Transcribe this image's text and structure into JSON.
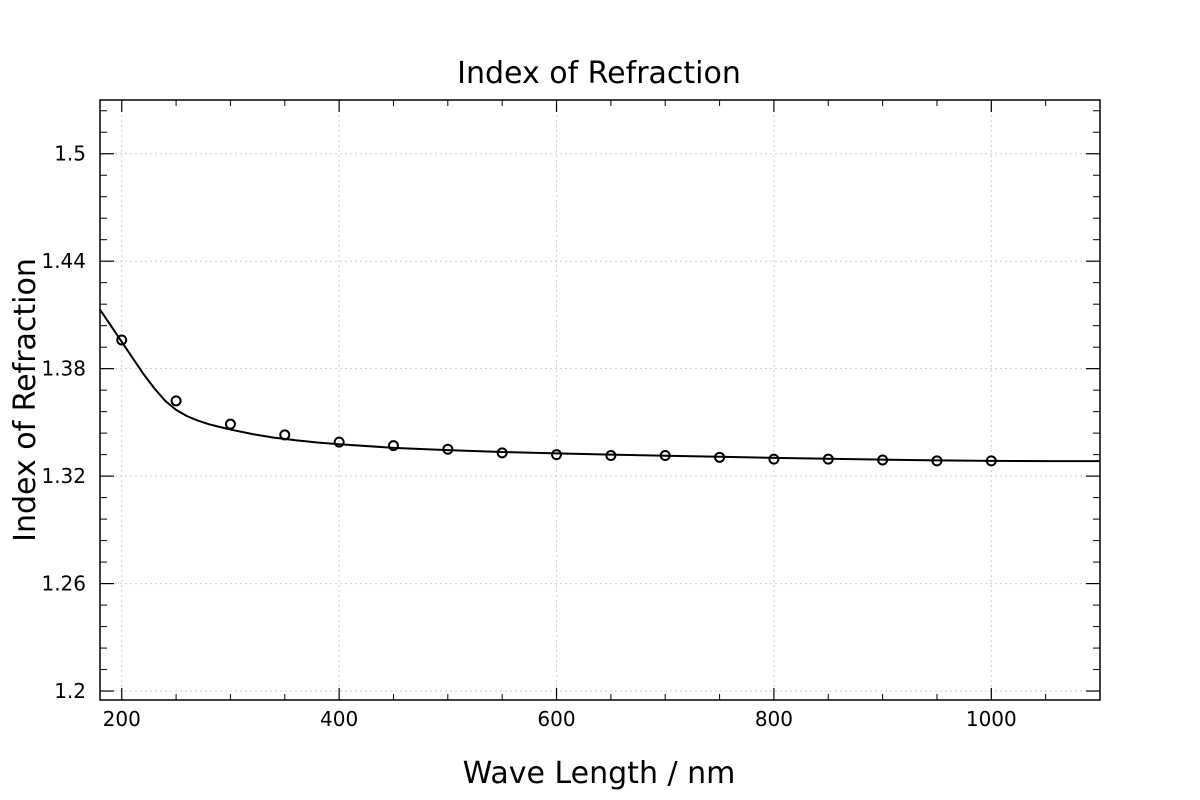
{
  "chart_data": {
    "type": "scatter",
    "title": "Index of Refraction",
    "xlabel": "Wave Length / nm",
    "ylabel": "Index of Refraction",
    "xlim": [
      180,
      1100
    ],
    "ylim": [
      1.195,
      1.53
    ],
    "xticks": [
      200,
      400,
      600,
      800,
      1000
    ],
    "xtick_labels": [
      "200",
      "400",
      "600",
      "800",
      "1000"
    ],
    "yticks": [
      1.2,
      1.26,
      1.32,
      1.38,
      1.44,
      1.5
    ],
    "ytick_labels": [
      "1.2",
      "1.26",
      "1.32",
      "1.38",
      "1.44",
      "1.5"
    ],
    "grid": true,
    "series": [
      {
        "kind": "markers",
        "marker": "open-circle",
        "color": "#000000",
        "x": [
          200,
          250,
          300,
          350,
          400,
          450,
          500,
          550,
          600,
          650,
          700,
          750,
          800,
          850,
          900,
          950,
          1000
        ],
        "y": [
          1.396,
          1.362,
          1.349,
          1.343,
          1.339,
          1.337,
          1.335,
          1.333,
          1.332,
          1.3315,
          1.3315,
          1.3305,
          1.3295,
          1.3295,
          1.329,
          1.3285,
          1.3285
        ]
      },
      {
        "kind": "fit-line",
        "color": "#000000",
        "x": [
          180,
          190,
          200,
          210,
          220,
          230,
          240,
          250,
          260,
          270,
          280,
          290,
          300,
          320,
          340,
          360,
          380,
          400,
          450,
          500,
          550,
          600,
          650,
          700,
          750,
          800,
          850,
          900,
          950,
          1000,
          1050,
          1100
        ],
        "y": [
          1.413,
          1.404,
          1.395,
          1.386,
          1.377,
          1.369,
          1.362,
          1.357,
          1.3535,
          1.351,
          1.349,
          1.3475,
          1.346,
          1.3435,
          1.3415,
          1.34,
          1.3388,
          1.3378,
          1.3358,
          1.3345,
          1.3335,
          1.3327,
          1.332,
          1.3314,
          1.3308,
          1.3302,
          1.3297,
          1.3292,
          1.3288,
          1.3285,
          1.3284,
          1.3284
        ]
      }
    ]
  }
}
